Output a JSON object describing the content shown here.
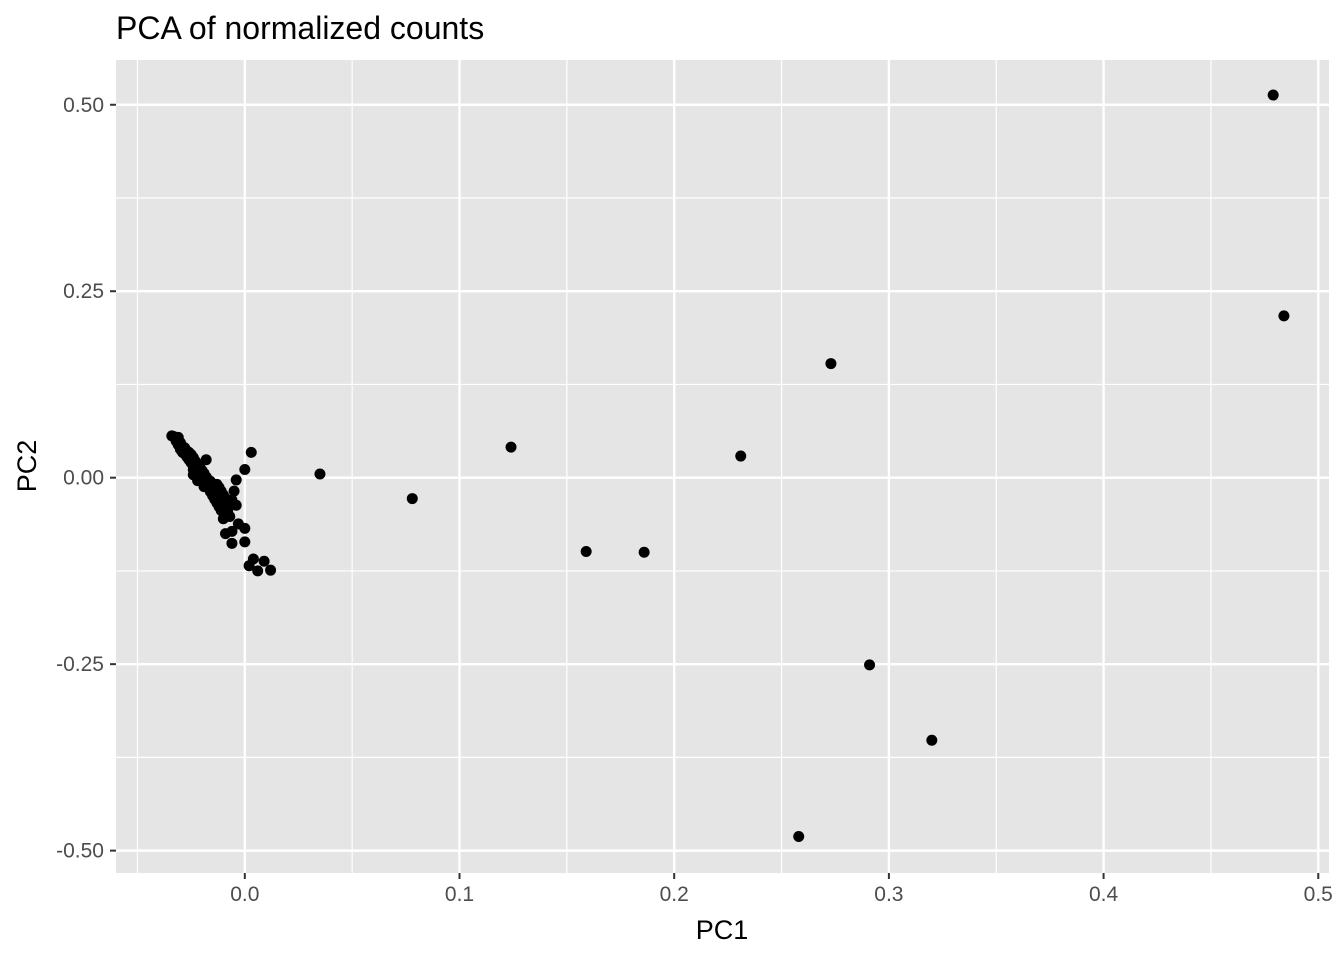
{
  "chart_data": {
    "type": "scatter",
    "title": "PCA of normalized counts",
    "xlabel": "PC1",
    "ylabel": "PC2",
    "xlim": [
      -0.06,
      0.505
    ],
    "ylim": [
      -0.53,
      0.56
    ],
    "x_ticks": [
      0.0,
      0.1,
      0.2,
      0.3,
      0.4,
      0.5
    ],
    "x_tick_labels": [
      "0.0",
      "0.1",
      "0.2",
      "0.3",
      "0.4",
      "0.5"
    ],
    "y_ticks": [
      -0.5,
      -0.25,
      0.0,
      0.25,
      0.5
    ],
    "y_tick_labels": [
      "-0.50",
      "-0.25",
      "0.00",
      "0.25",
      "0.50"
    ],
    "grid": true,
    "colors": {
      "panel": "#e5e5e5",
      "grid": "#ffffff",
      "point": "#000000",
      "tick_text": "#4d4d4d",
      "tick_mark": "#333333"
    },
    "points": [
      {
        "x": 0.479,
        "y": 0.513
      },
      {
        "x": 0.484,
        "y": 0.217
      },
      {
        "x": 0.273,
        "y": 0.153
      },
      {
        "x": 0.231,
        "y": 0.029
      },
      {
        "x": 0.124,
        "y": 0.041
      },
      {
        "x": 0.078,
        "y": -0.028
      },
      {
        "x": 0.035,
        "y": 0.005
      },
      {
        "x": 0.159,
        "y": -0.099
      },
      {
        "x": 0.186,
        "y": -0.1
      },
      {
        "x": 0.291,
        "y": -0.251
      },
      {
        "x": 0.32,
        "y": -0.352
      },
      {
        "x": 0.258,
        "y": -0.481
      },
      {
        "x": 0.003,
        "y": 0.034
      },
      {
        "x": 0.0,
        "y": 0.011
      },
      {
        "x": -0.034,
        "y": 0.056
      },
      {
        "x": -0.033,
        "y": 0.055
      },
      {
        "x": -0.032,
        "y": 0.053
      },
      {
        "x": -0.031,
        "y": 0.054
      },
      {
        "x": -0.032,
        "y": 0.049
      },
      {
        "x": -0.03,
        "y": 0.047
      },
      {
        "x": -0.031,
        "y": 0.044
      },
      {
        "x": -0.029,
        "y": 0.042
      },
      {
        "x": -0.028,
        "y": 0.04
      },
      {
        "x": -0.03,
        "y": 0.038
      },
      {
        "x": -0.027,
        "y": 0.036
      },
      {
        "x": -0.026,
        "y": 0.034
      },
      {
        "x": -0.028,
        "y": 0.032
      },
      {
        "x": -0.025,
        "y": 0.031
      },
      {
        "x": -0.027,
        "y": 0.028
      },
      {
        "x": -0.024,
        "y": 0.027
      },
      {
        "x": -0.026,
        "y": 0.024
      },
      {
        "x": -0.023,
        "y": 0.022
      },
      {
        "x": -0.025,
        "y": 0.02
      },
      {
        "x": -0.022,
        "y": 0.018
      },
      {
        "x": -0.024,
        "y": 0.016
      },
      {
        "x": -0.018,
        "y": 0.024
      },
      {
        "x": -0.021,
        "y": 0.014
      },
      {
        "x": -0.023,
        "y": 0.012
      },
      {
        "x": -0.02,
        "y": 0.01
      },
      {
        "x": -0.022,
        "y": 0.008
      },
      {
        "x": -0.019,
        "y": 0.006
      },
      {
        "x": -0.024,
        "y": 0.004
      },
      {
        "x": -0.021,
        "y": 0.002
      },
      {
        "x": -0.018,
        "y": 0.001
      },
      {
        "x": -0.02,
        "y": -0.001
      },
      {
        "x": -0.017,
        "y": -0.003
      },
      {
        "x": -0.022,
        "y": -0.004
      },
      {
        "x": -0.019,
        "y": -0.006
      },
      {
        "x": -0.016,
        "y": -0.008
      },
      {
        "x": -0.018,
        "y": -0.01
      },
      {
        "x": -0.015,
        "y": -0.012
      },
      {
        "x": -0.013,
        "y": -0.009
      },
      {
        "x": -0.017,
        "y": -0.014
      },
      {
        "x": -0.014,
        "y": -0.016
      },
      {
        "x": -0.012,
        "y": -0.013
      },
      {
        "x": -0.016,
        "y": -0.019
      },
      {
        "x": -0.013,
        "y": -0.021
      },
      {
        "x": -0.011,
        "y": -0.018
      },
      {
        "x": -0.015,
        "y": -0.024
      },
      {
        "x": -0.012,
        "y": -0.026
      },
      {
        "x": -0.01,
        "y": -0.023
      },
      {
        "x": -0.014,
        "y": -0.029
      },
      {
        "x": -0.011,
        "y": -0.031
      },
      {
        "x": -0.009,
        "y": -0.028
      },
      {
        "x": -0.013,
        "y": -0.034
      },
      {
        "x": -0.01,
        "y": -0.036
      },
      {
        "x": -0.008,
        "y": -0.033
      },
      {
        "x": -0.012,
        "y": -0.039
      },
      {
        "x": -0.009,
        "y": -0.041
      },
      {
        "x": -0.007,
        "y": -0.038
      },
      {
        "x": -0.011,
        "y": -0.044
      },
      {
        "x": -0.008,
        "y": -0.046
      },
      {
        "x": -0.004,
        "y": -0.003
      },
      {
        "x": -0.005,
        "y": -0.018
      },
      {
        "x": -0.006,
        "y": -0.03
      },
      {
        "x": -0.004,
        "y": -0.037
      },
      {
        "x": -0.007,
        "y": -0.052
      },
      {
        "x": -0.01,
        "y": -0.055
      },
      {
        "x": -0.003,
        "y": -0.062
      },
      {
        "x": 0.0,
        "y": -0.068
      },
      {
        "x": -0.006,
        "y": -0.072
      },
      {
        "x": -0.009,
        "y": -0.075
      },
      {
        "x": -0.006,
        "y": -0.088
      },
      {
        "x": 0.0,
        "y": -0.086
      },
      {
        "x": 0.004,
        "y": -0.109
      },
      {
        "x": 0.009,
        "y": -0.112
      },
      {
        "x": 0.002,
        "y": -0.118
      },
      {
        "x": 0.006,
        "y": -0.125
      },
      {
        "x": 0.012,
        "y": -0.124
      },
      {
        "x": -0.029,
        "y": 0.034
      },
      {
        "x": -0.026,
        "y": 0.029
      },
      {
        "x": -0.024,
        "y": 0.011
      },
      {
        "x": -0.021,
        "y": 0.005
      },
      {
        "x": -0.019,
        "y": -0.012
      },
      {
        "x": -0.016,
        "y": -0.005
      },
      {
        "x": -0.014,
        "y": -0.02
      }
    ]
  }
}
